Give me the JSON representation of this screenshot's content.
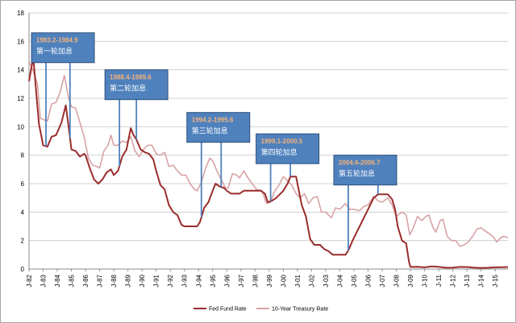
{
  "chart_data": {
    "type": "line",
    "title": "",
    "xlabel": "",
    "ylabel": "",
    "ylim": [
      0,
      18
    ],
    "xlim": [
      1982.0,
      2015.9
    ],
    "grid": true,
    "legend_position": "bottom",
    "y_ticks": [
      0,
      2,
      4,
      6,
      8,
      10,
      12,
      14,
      16,
      18
    ],
    "x_ticks": [
      {
        "label": "J-82",
        "x": 1982
      },
      {
        "label": "J-83",
        "x": 1983
      },
      {
        "label": "J-84",
        "x": 1984
      },
      {
        "label": "J-85",
        "x": 1985
      },
      {
        "label": "J-86",
        "x": 1986
      },
      {
        "label": "J-87",
        "x": 1987
      },
      {
        "label": "J-88",
        "x": 1988
      },
      {
        "label": "J-89",
        "x": 1989
      },
      {
        "label": "J-90",
        "x": 1990
      },
      {
        "label": "J-91",
        "x": 1991
      },
      {
        "label": "J-92",
        "x": 1992
      },
      {
        "label": "J-93",
        "x": 1993
      },
      {
        "label": "J-94",
        "x": 1994
      },
      {
        "label": "J-95",
        "x": 1995
      },
      {
        "label": "J-96",
        "x": 1996
      },
      {
        "label": "J-97",
        "x": 1997
      },
      {
        "label": "J-98",
        "x": 1998
      },
      {
        "label": "J-99",
        "x": 1999
      },
      {
        "label": "J-00",
        "x": 2000
      },
      {
        "label": "J-01",
        "x": 2001
      },
      {
        "label": "J-02",
        "x": 2002
      },
      {
        "label": "J-03",
        "x": 2003
      },
      {
        "label": "J-04",
        "x": 2004
      },
      {
        "label": "J-05",
        "x": 2005
      },
      {
        "label": "J-06",
        "x": 2006
      },
      {
        "label": "J-07",
        "x": 2007
      },
      {
        "label": "J-08",
        "x": 2008
      },
      {
        "label": "J-09",
        "x": 2009
      },
      {
        "label": "J-10",
        "x": 2010
      },
      {
        "label": "J-11",
        "x": 2011
      },
      {
        "label": "J-12",
        "x": 2012
      },
      {
        "label": "J-13",
        "x": 2013
      },
      {
        "label": "J-14",
        "x": 2014
      },
      {
        "label": "J-15",
        "x": 2015
      }
    ],
    "series": [
      {
        "name": "Fed Fund Rate",
        "color": "#9b2c2c",
        "points": [
          [
            1982.0,
            13.2
          ],
          [
            1982.3,
            14.9
          ],
          [
            1982.5,
            12.5
          ],
          [
            1982.7,
            10.2
          ],
          [
            1982.9,
            9.2
          ],
          [
            1983.0,
            8.7
          ],
          [
            1983.3,
            8.6
          ],
          [
            1983.6,
            9.3
          ],
          [
            1983.9,
            9.4
          ],
          [
            1984.0,
            9.6
          ],
          [
            1984.3,
            10.3
          ],
          [
            1984.6,
            11.5
          ],
          [
            1984.8,
            10.0
          ],
          [
            1985.0,
            8.4
          ],
          [
            1985.3,
            8.3
          ],
          [
            1985.6,
            7.9
          ],
          [
            1985.9,
            8.1
          ],
          [
            1986.0,
            8.0
          ],
          [
            1986.3,
            7.1
          ],
          [
            1986.6,
            6.3
          ],
          [
            1986.9,
            6.0
          ],
          [
            1987.2,
            6.3
          ],
          [
            1987.5,
            6.8
          ],
          [
            1987.8,
            7.0
          ],
          [
            1988.0,
            6.6
          ],
          [
            1988.3,
            6.9
          ],
          [
            1988.6,
            7.9
          ],
          [
            1988.9,
            8.4
          ],
          [
            1989.2,
            9.9
          ],
          [
            1989.4,
            9.4
          ],
          [
            1989.6,
            9.1
          ],
          [
            1989.9,
            8.4
          ],
          [
            1990.2,
            8.2
          ],
          [
            1990.5,
            8.1
          ],
          [
            1990.8,
            7.7
          ],
          [
            1991.0,
            6.9
          ],
          [
            1991.3,
            5.9
          ],
          [
            1991.6,
            5.6
          ],
          [
            1991.9,
            4.5
          ],
          [
            1992.2,
            4.0
          ],
          [
            1992.5,
            3.8
          ],
          [
            1992.8,
            3.1
          ],
          [
            1993.0,
            3.0
          ],
          [
            1993.3,
            3.0
          ],
          [
            1993.6,
            3.0
          ],
          [
            1993.9,
            3.0
          ],
          [
            1994.1,
            3.3
          ],
          [
            1994.4,
            4.3
          ],
          [
            1994.7,
            4.7
          ],
          [
            1995.0,
            5.5
          ],
          [
            1995.2,
            6.0
          ],
          [
            1995.5,
            5.8
          ],
          [
            1995.8,
            5.7
          ],
          [
            1996.0,
            5.5
          ],
          [
            1996.3,
            5.3
          ],
          [
            1996.6,
            5.3
          ],
          [
            1996.9,
            5.3
          ],
          [
            1997.2,
            5.5
          ],
          [
            1997.5,
            5.5
          ],
          [
            1997.8,
            5.5
          ],
          [
            1998.1,
            5.5
          ],
          [
            1998.4,
            5.5
          ],
          [
            1998.7,
            5.3
          ],
          [
            1998.9,
            4.7
          ],
          [
            1999.2,
            4.8
          ],
          [
            1999.5,
            5.0
          ],
          [
            1999.8,
            5.3
          ],
          [
            2000.0,
            5.5
          ],
          [
            2000.3,
            6.0
          ],
          [
            2000.5,
            6.5
          ],
          [
            2000.9,
            6.5
          ],
          [
            2001.1,
            5.5
          ],
          [
            2001.3,
            4.5
          ],
          [
            2001.6,
            3.7
          ],
          [
            2001.9,
            2.1
          ],
          [
            2002.2,
            1.7
          ],
          [
            2002.6,
            1.7
          ],
          [
            2002.9,
            1.4
          ],
          [
            2003.2,
            1.25
          ],
          [
            2003.5,
            1.0
          ],
          [
            2004.0,
            1.0
          ],
          [
            2004.4,
            1.0
          ],
          [
            2004.6,
            1.3
          ],
          [
            2004.9,
            2.0
          ],
          [
            2005.2,
            2.6
          ],
          [
            2005.5,
            3.2
          ],
          [
            2005.8,
            3.8
          ],
          [
            2006.1,
            4.4
          ],
          [
            2006.4,
            5.0
          ],
          [
            2006.7,
            5.25
          ],
          [
            2007.0,
            5.25
          ],
          [
            2007.4,
            5.25
          ],
          [
            2007.7,
            4.9
          ],
          [
            2007.9,
            4.25
          ],
          [
            2008.1,
            3.0
          ],
          [
            2008.4,
            2.0
          ],
          [
            2008.7,
            1.8
          ],
          [
            2008.9,
            0.5
          ],
          [
            2009.0,
            0.15
          ],
          [
            2009.5,
            0.16
          ],
          [
            2010.0,
            0.12
          ],
          [
            2010.5,
            0.18
          ],
          [
            2011.0,
            0.16
          ],
          [
            2011.5,
            0.09
          ],
          [
            2012.0,
            0.1
          ],
          [
            2012.5,
            0.15
          ],
          [
            2013.0,
            0.14
          ],
          [
            2013.5,
            0.1
          ],
          [
            2014.0,
            0.08
          ],
          [
            2014.5,
            0.09
          ],
          [
            2015.0,
            0.12
          ],
          [
            2015.5,
            0.13
          ],
          [
            2015.9,
            0.14
          ]
        ]
      },
      {
        "name": "10-Year Treasury Rate",
        "color": "#d8a3a6",
        "points": [
          [
            1982.0,
            14.6
          ],
          [
            1982.3,
            13.9
          ],
          [
            1982.6,
            13.0
          ],
          [
            1982.8,
            10.6
          ],
          [
            1983.0,
            10.5
          ],
          [
            1983.3,
            10.4
          ],
          [
            1983.6,
            11.6
          ],
          [
            1983.9,
            11.7
          ],
          [
            1984.2,
            12.4
          ],
          [
            1984.5,
            13.6
          ],
          [
            1984.8,
            12.0
          ],
          [
            1985.0,
            11.4
          ],
          [
            1985.3,
            11.3
          ],
          [
            1985.6,
            10.3
          ],
          [
            1985.9,
            9.3
          ],
          [
            1986.2,
            7.8
          ],
          [
            1986.5,
            7.3
          ],
          [
            1986.8,
            7.2
          ],
          [
            1987.0,
            7.1
          ],
          [
            1987.3,
            8.3
          ],
          [
            1987.6,
            8.7
          ],
          [
            1987.8,
            9.4
          ],
          [
            1988.0,
            8.7
          ],
          [
            1988.3,
            8.7
          ],
          [
            1988.6,
            9.0
          ],
          [
            1988.9,
            8.9
          ],
          [
            1989.2,
            9.3
          ],
          [
            1989.5,
            8.3
          ],
          [
            1989.8,
            7.9
          ],
          [
            1990.1,
            8.4
          ],
          [
            1990.4,
            8.7
          ],
          [
            1990.7,
            8.7
          ],
          [
            1991.0,
            8.1
          ],
          [
            1991.3,
            8.0
          ],
          [
            1991.6,
            8.2
          ],
          [
            1991.9,
            7.2
          ],
          [
            1992.2,
            7.3
          ],
          [
            1992.5,
            6.9
          ],
          [
            1992.8,
            6.6
          ],
          [
            1993.1,
            6.6
          ],
          [
            1993.4,
            6.0
          ],
          [
            1993.7,
            5.6
          ],
          [
            1993.9,
            5.5
          ],
          [
            1994.2,
            6.1
          ],
          [
            1994.5,
            7.1
          ],
          [
            1994.8,
            7.8
          ],
          [
            1995.0,
            7.6
          ],
          [
            1995.3,
            6.9
          ],
          [
            1995.6,
            6.3
          ],
          [
            1995.9,
            5.7
          ],
          [
            1996.1,
            5.7
          ],
          [
            1996.4,
            6.7
          ],
          [
            1996.7,
            6.6
          ],
          [
            1996.9,
            6.4
          ],
          [
            1997.2,
            6.9
          ],
          [
            1997.5,
            6.4
          ],
          [
            1997.8,
            6.0
          ],
          [
            1998.1,
            5.6
          ],
          [
            1998.5,
            5.5
          ],
          [
            1998.8,
            4.6
          ],
          [
            1999.1,
            4.7
          ],
          [
            1999.4,
            5.5
          ],
          [
            1999.7,
            5.9
          ],
          [
            2000.0,
            6.5
          ],
          [
            2000.3,
            6.2
          ],
          [
            2000.6,
            5.9
          ],
          [
            2000.9,
            5.3
          ],
          [
            2001.2,
            5.0
          ],
          [
            2001.5,
            5.3
          ],
          [
            2001.8,
            4.6
          ],
          [
            2002.1,
            5.0
          ],
          [
            2002.4,
            5.1
          ],
          [
            2002.7,
            4.0
          ],
          [
            2003.0,
            4.0
          ],
          [
            2003.4,
            3.6
          ],
          [
            2003.7,
            4.3
          ],
          [
            2004.0,
            4.2
          ],
          [
            2004.4,
            4.6
          ],
          [
            2004.7,
            4.2
          ],
          [
            2005.0,
            4.2
          ],
          [
            2005.4,
            4.1
          ],
          [
            2005.7,
            4.4
          ],
          [
            2006.0,
            4.5
          ],
          [
            2006.4,
            5.1
          ],
          [
            2006.7,
            4.8
          ],
          [
            2007.0,
            4.7
          ],
          [
            2007.4,
            5.0
          ],
          [
            2007.7,
            4.5
          ],
          [
            2008.0,
            3.7
          ],
          [
            2008.4,
            4.0
          ],
          [
            2008.7,
            3.8
          ],
          [
            2008.95,
            2.4
          ],
          [
            2009.2,
            2.9
          ],
          [
            2009.5,
            3.7
          ],
          [
            2009.8,
            3.4
          ],
          [
            2010.1,
            3.7
          ],
          [
            2010.3,
            3.8
          ],
          [
            2010.6,
            2.9
          ],
          [
            2010.8,
            2.6
          ],
          [
            2011.1,
            3.4
          ],
          [
            2011.3,
            3.5
          ],
          [
            2011.6,
            2.3
          ],
          [
            2011.9,
            2.0
          ],
          [
            2012.2,
            2.0
          ],
          [
            2012.5,
            1.6
          ],
          [
            2012.8,
            1.7
          ],
          [
            2013.1,
            1.9
          ],
          [
            2013.4,
            2.3
          ],
          [
            2013.7,
            2.8
          ],
          [
            2014.0,
            2.9
          ],
          [
            2014.4,
            2.6
          ],
          [
            2014.7,
            2.4
          ],
          [
            2014.9,
            2.2
          ],
          [
            2015.1,
            1.9
          ],
          [
            2015.4,
            2.2
          ],
          [
            2015.6,
            2.3
          ],
          [
            2015.9,
            2.2
          ]
        ]
      }
    ],
    "annotations": [
      {
        "range": "1983.2-1984.9",
        "label": "第一轮加息",
        "start": 1983.2,
        "end": 1984.9,
        "y": 16.6
      },
      {
        "range": "1988.4-1989.6",
        "label": "第二轮加息",
        "start": 1988.4,
        "end": 1989.6,
        "y": 14.0
      },
      {
        "range": "1994.2-1995.6",
        "label": "第三轮加息",
        "start": 1994.2,
        "end": 1995.6,
        "y": 11.0
      },
      {
        "range": "1999.1-2000.5",
        "label": "第四轮加息",
        "start": 1999.1,
        "end": 2000.5,
        "y": 9.5
      },
      {
        "range": "2004.6-2006.7",
        "label": "第五轮加息",
        "start": 2004.6,
        "end": 2006.7,
        "y": 8.0
      }
    ]
  }
}
